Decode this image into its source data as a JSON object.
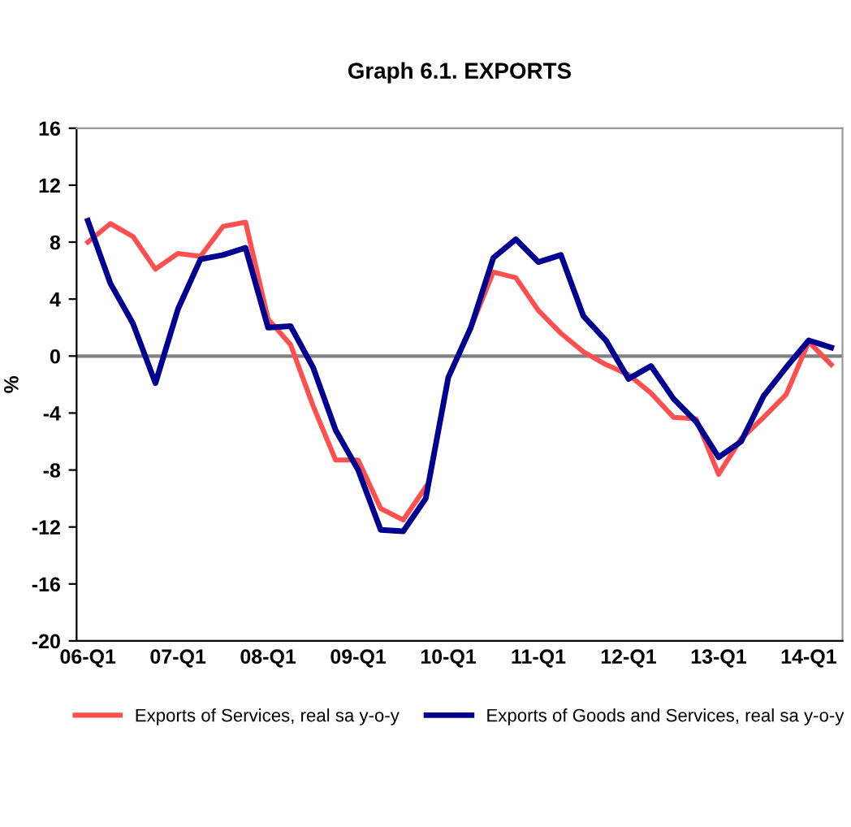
{
  "chart_data": {
    "type": "line",
    "title": "Graph 6.1. EXPORTS",
    "ylabel": "%",
    "categories": [
      "06-Q1",
      null,
      null,
      null,
      "07-Q1",
      null,
      null,
      null,
      "08-Q1",
      null,
      null,
      null,
      "09-Q1",
      null,
      null,
      null,
      "10-Q1",
      null,
      null,
      null,
      "11-Q1",
      null,
      null,
      null,
      "12-Q1",
      null,
      null,
      null,
      "13-Q1",
      null,
      null,
      null,
      "14-Q1",
      null
    ],
    "series": [
      {
        "name": "Exports of Services, real sa y-o-y",
        "color": "#ff5050",
        "values": [
          8.0,
          9.3,
          8.4,
          6.1,
          7.2,
          7.0,
          9.1,
          9.4,
          2.6,
          0.8,
          -3.5,
          -7.3,
          -7.3,
          -10.7,
          -11.5,
          -9.2,
          null,
          2.0,
          5.9,
          5.5,
          3.2,
          1.6,
          0.3,
          -0.6,
          -1.3,
          -2.6,
          -4.3,
          -4.4,
          -8.3,
          -5.8,
          -4.3,
          -2.7,
          1.0,
          -0.6
        ]
      },
      {
        "name": "Exports of Goods and Services, real sa y-o-y",
        "color": "#000090",
        "values": [
          9.5,
          5.1,
          2.3,
          -1.9,
          3.3,
          6.8,
          7.1,
          7.6,
          2.0,
          2.1,
          -0.8,
          -5.2,
          -8.0,
          -12.2,
          -12.3,
          -10.0,
          -1.5,
          2.0,
          6.9,
          8.2,
          6.6,
          7.1,
          2.8,
          1.1,
          -1.6,
          -0.7,
          -3.0,
          -4.6,
          -7.1,
          -6.0,
          -2.8,
          -0.8,
          1.1,
          0.6
        ]
      }
    ],
    "ylim": [
      -20,
      16
    ],
    "yticks": [
      -20,
      -16,
      -12,
      -8,
      -4,
      0,
      4,
      8,
      12,
      16
    ],
    "ref_lines": [
      {
        "axis": "y",
        "value": 0,
        "color": "#808080"
      }
    ],
    "legend": "bottom",
    "grid": false,
    "marker": "none",
    "line_style": "solid"
  }
}
